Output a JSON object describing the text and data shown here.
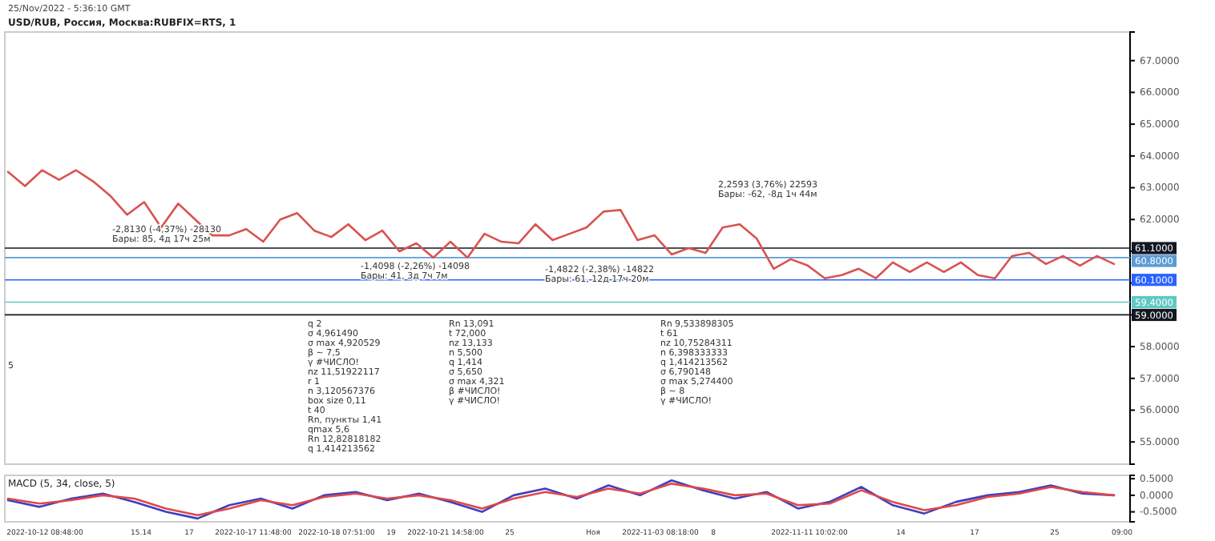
{
  "chart_data": [
    {
      "type": "line",
      "title": "USD/RUB, Россия, Москва:RUBFIX=RTS, 1",
      "subtitle": "25/Nov/2022 - 5:36:10 GMT",
      "categories": [
        null,
        null,
        null,
        null,
        null,
        null,
        null,
        null,
        null,
        null,
        null,
        null,
        null,
        null,
        null,
        null,
        null,
        null,
        null,
        null,
        null,
        null,
        null,
        null,
        null,
        null,
        null,
        null,
        null,
        null,
        null,
        null,
        null,
        null,
        null,
        null,
        null,
        null,
        null,
        null,
        null,
        null,
        null,
        null,
        null,
        null,
        null,
        null,
        null,
        null,
        null,
        null,
        null,
        null,
        null,
        null,
        null,
        null,
        null,
        null,
        null,
        null,
        null,
        null,
        null,
        null
      ],
      "series": [
        {
          "color": "#d9534f",
          "values": [
            63.5,
            63.05,
            63.55,
            63.25,
            63.55,
            63.2,
            62.75,
            62.15,
            62.55,
            61.75,
            62.5,
            62.0,
            61.5,
            61.5,
            61.7,
            61.3,
            62.0,
            62.2,
            61.65,
            61.45,
            61.85,
            61.35,
            61.65,
            61.0,
            61.25,
            60.8,
            61.3,
            60.8,
            61.55,
            61.3,
            61.25,
            61.85,
            61.35,
            61.55,
            61.75,
            62.25,
            62.3,
            61.35,
            61.5,
            60.9,
            61.1,
            60.95,
            61.75,
            61.85,
            61.4,
            60.45,
            60.75,
            60.55,
            60.15,
            60.25,
            60.45,
            60.15,
            60.65,
            60.35,
            60.65,
            60.35,
            60.65,
            60.25,
            60.15,
            60.85,
            60.95,
            60.6,
            60.85,
            60.55,
            60.85,
            60.6
          ]
        }
      ],
      "ylim": [
        54.3,
        67.9
      ],
      "yticks": [
        {
          "value": 55,
          "label": "55.0000"
        },
        {
          "value": 56,
          "label": "56.0000"
        },
        {
          "value": 57,
          "label": "57.0000"
        },
        {
          "value": 58,
          "label": "58.0000"
        },
        {
          "value": 59,
          "label": null
        },
        {
          "value": 60,
          "label": null
        },
        {
          "value": 61,
          "label": null
        },
        {
          "value": 62,
          "label": "62.0000"
        },
        {
          "value": 63,
          "label": "63.0000"
        },
        {
          "value": 64,
          "label": "64.0000"
        },
        {
          "value": 65,
          "label": "65.0000"
        },
        {
          "value": 66,
          "label": "66.0000"
        },
        {
          "value": 67,
          "label": "67.0000"
        }
      ],
      "tick_labels": "y",
      "ref_lines": [
        {
          "axis": "y",
          "value": 61.1,
          "label": "61.1000",
          "color": "#131722"
        },
        {
          "axis": "y",
          "value": 60.8,
          "label": "60.8000",
          "color": "#5b9bd5"
        },
        {
          "axis": "y",
          "value": 60.1,
          "label": "60.1000",
          "color": "#2962ff"
        },
        {
          "axis": "y",
          "value": 59.4,
          "label": "59.4000",
          "color": "#5fc9c2"
        },
        {
          "axis": "y",
          "value": 59.0,
          "label": "59.0000",
          "color": "#131722"
        }
      ],
      "annotations": [
        "-2,8130 (-4,37%) -28130\nБары: 85, 4д 17ч 25м",
        "-1,4098 (-2,26%) -14098\nБары: 41, 3д 7ч 7м",
        "-1,4822 (-2,38%) -14822\nБары: 61, 12д 17ч 20м",
        "2,2593 (3,76%) 22593\nБары: -62, -8д 1ч 44м",
        "q 2\nσ 4,961490\nσ max 4,920529\nβ ~ 7,5\nγ #ЧИСЛО!\nnz 11,51922117\nr 1\nn 3,120567376\nbox size 0,11\nt 40\nRn, пункты 1,41\nqmax 5,6\nRn 12,82818182\nq 1,414213562",
        "Rn 13,091\nt 72,000\nnz 13,133\nn 5,500\nq 1,414\nσ 5,650\nσ max 4,321\nβ #ЧИСЛО!\nγ #ЧИСЛО!",
        "Rn 9,533898305\nt 61\nnz 10,75284311\nn 6,398333333\nq 1,414213562\nσ 6,790148\nσ max 5,274400\nβ ~ 8\nγ #ЧИСЛО!",
        "5"
      ]
    },
    {
      "type": "line",
      "title": "MACD (5, 34, close, 5)",
      "categories": [
        null,
        null,
        null,
        null,
        null,
        null,
        null,
        null,
        null,
        null,
        null,
        null,
        null,
        null,
        null,
        null,
        null,
        null,
        null,
        null,
        null,
        null,
        null,
        null,
        null,
        null,
        null,
        null,
        null,
        null,
        null,
        null,
        null,
        null,
        null,
        null
      ],
      "series": [
        {
          "color": "#3f3fbf",
          "values": [
            -0.15,
            -0.35,
            -0.1,
            0.05,
            -0.2,
            -0.5,
            -0.7,
            -0.3,
            -0.1,
            -0.4,
            0.0,
            0.1,
            -0.15,
            0.05,
            -0.2,
            -0.5,
            0.0,
            0.2,
            -0.1,
            0.3,
            0.0,
            0.45,
            0.15,
            -0.1,
            0.1,
            -0.4,
            -0.2,
            0.25,
            -0.3,
            -0.55,
            -0.2,
            0.0,
            0.1,
            0.3,
            0.05,
            0.0
          ]
        },
        {
          "color": "#e04848",
          "values": [
            -0.1,
            -0.25,
            -0.15,
            0.0,
            -0.1,
            -0.4,
            -0.6,
            -0.4,
            -0.15,
            -0.3,
            -0.05,
            0.05,
            -0.1,
            0.0,
            -0.15,
            -0.4,
            -0.1,
            0.1,
            -0.05,
            0.2,
            0.05,
            0.35,
            0.2,
            0.0,
            0.05,
            -0.3,
            -0.25,
            0.15,
            -0.2,
            -0.45,
            -0.3,
            -0.05,
            0.05,
            0.25,
            0.1,
            0.0
          ]
        }
      ],
      "ylim": [
        -0.8,
        0.6
      ],
      "yticks": [
        {
          "value": 0.5,
          "label": "0.5000"
        },
        {
          "value": 0,
          "label": "0.0000"
        },
        {
          "value": -0.5,
          "label": "-0.5000"
        }
      ],
      "tick_labels": "y",
      "annotations": [
        "2022-10-12 08:48:00",
        "15.14",
        "17",
        "2022-10-17 11:48:00",
        "2022-10-18 07:51:00",
        "19",
        "2022-10-21 14:58:00",
        "25",
        "Ноя",
        "2022-11-03 08:18:00",
        "8",
        "2022-11-11 10:02:00",
        "14",
        "17",
        "25",
        "09:00"
      ]
    }
  ]
}
